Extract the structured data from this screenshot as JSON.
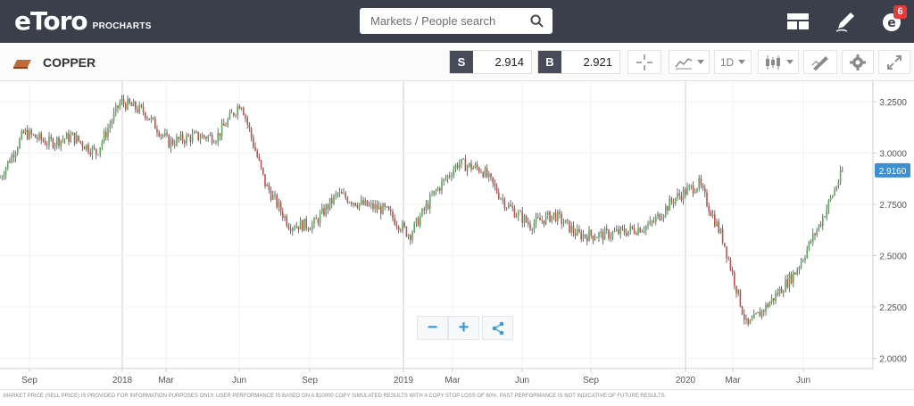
{
  "header": {
    "logo": "eToro",
    "logo_sub": "PROCHARTS",
    "search_placeholder": "Markets / People search",
    "notification_count": "6"
  },
  "toolbar": {
    "asset": "COPPER",
    "sell_letter": "S",
    "sell_price": "2.914",
    "buy_letter": "B",
    "buy_price": "2.921",
    "interval": "1D"
  },
  "chart": {
    "y_ticks": [
      "3.2500",
      "3.0000",
      "2.7500",
      "2.5000",
      "2.2500",
      "2.0000"
    ],
    "x_ticks": [
      "Sep",
      "2018",
      "Mar",
      "Jun",
      "Sep",
      "2019",
      "Mar",
      "Jun",
      "Sep",
      "2020",
      "Mar",
      "Jun"
    ],
    "last_price": "2.9160",
    "colors": {
      "up": "#5aa85a",
      "down": "#c0504d",
      "last_price_tag": "#3a8fd6"
    }
  },
  "chart_data": {
    "type": "candlestick",
    "x_labels": [
      "Sep",
      "2018",
      "Mar",
      "Jun",
      "Sep",
      "2019",
      "Mar",
      "Jun",
      "Sep",
      "2020",
      "Mar",
      "Jun"
    ],
    "ylim": [
      1.95,
      3.35
    ],
    "y_ticks": [
      2.0,
      2.25,
      2.5,
      2.75,
      3.0,
      3.25
    ],
    "last_price": 2.916,
    "approx_close_path": [
      {
        "x": "Aug 2017",
        "close": 2.88
      },
      {
        "x": "Sep 2017",
        "close": 3.1
      },
      {
        "x": "Oct 2017",
        "close": 3.05
      },
      {
        "x": "Nov 2017",
        "close": 3.08
      },
      {
        "x": "Dec 2017",
        "close": 3.0
      },
      {
        "x": "Jan 2018",
        "close": 3.25
      },
      {
        "x": "Feb 2018",
        "close": 3.2
      },
      {
        "x": "Mar 2018",
        "close": 3.05
      },
      {
        "x": "Apr 2018",
        "close": 3.08
      },
      {
        "x": "May 2018",
        "close": 3.08
      },
      {
        "x": "Jun 2018",
        "close": 3.25
      },
      {
        "x": "Jul 2018",
        "close": 2.85
      },
      {
        "x": "Aug 2018",
        "close": 2.65
      },
      {
        "x": "Sep 2018",
        "close": 2.65
      },
      {
        "x": "Oct 2018",
        "close": 2.8
      },
      {
        "x": "Nov 2018",
        "close": 2.75
      },
      {
        "x": "Dec 2018",
        "close": 2.72
      },
      {
        "x": "Jan 2019",
        "close": 2.6
      },
      {
        "x": "Feb 2019",
        "close": 2.8
      },
      {
        "x": "Mar 2019",
        "close": 2.95
      },
      {
        "x": "Apr 2019",
        "close": 2.92
      },
      {
        "x": "May 2019",
        "close": 2.75
      },
      {
        "x": "Jun 2019",
        "close": 2.65
      },
      {
        "x": "Jul 2019",
        "close": 2.7
      },
      {
        "x": "Aug 2019",
        "close": 2.6
      },
      {
        "x": "Sep 2019",
        "close": 2.6
      },
      {
        "x": "Oct 2019",
        "close": 2.62
      },
      {
        "x": "Nov 2019",
        "close": 2.65
      },
      {
        "x": "Dec 2019",
        "close": 2.78
      },
      {
        "x": "Jan 2020",
        "close": 2.85
      },
      {
        "x": "Feb 2020",
        "close": 2.58
      },
      {
        "x": "Mar 2020",
        "close": 2.15
      },
      {
        "x": "Apr 2020",
        "close": 2.28
      },
      {
        "x": "May 2020",
        "close": 2.42
      },
      {
        "x": "Jun 2020",
        "close": 2.65
      },
      {
        "x": "Jul 2020",
        "close": 2.92
      }
    ]
  },
  "footer": {
    "disclaimer": "MARKET PRICE (SELL PRICE) IS PROVIDED FOR INFORMATION PURPOSES ONLY. USER PERFORMANCE IS BASED ON A $10000 COPY SIMULATED RESULTS WITH A COPY STOP LOSS OF 60%. PAST PERFORMANCE IS NOT INDICATIVE OF FUTURE RESULTS."
  }
}
